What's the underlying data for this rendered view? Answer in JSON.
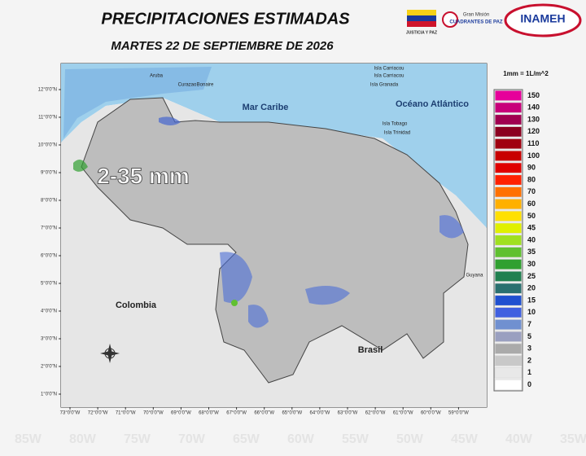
{
  "header": {
    "title": "PRECIPITACIONES  ESTIMADAS",
    "date": "MARTES 22 DE SEPTIEMBRE DE 2026"
  },
  "logos": {
    "ministry": "JUSTICIA Y PAZ",
    "mission_top": "Gran Misión",
    "mission_bottom": "CUADRANTES DE PAZ",
    "institute": "INAMEH"
  },
  "map": {
    "range_label": "2-35 mm",
    "places": [
      "Aruba",
      "Curazao",
      "Bonaire",
      "Mar Caribe",
      "Océano Atlántico",
      "Isla Carriacou",
      "Isla Carriacou",
      "Isla Granada",
      "Isla Tobago",
      "Isla Trinidad",
      "Colombia",
      "Brasil",
      "Guyana"
    ],
    "latitude_labels": [
      "12°0'0\"N",
      "11°0'0\"N",
      "10°0'0\"N",
      "9°0'0\"N",
      "8°0'0\"N",
      "7°0'0\"N",
      "6°0'0\"N",
      "5°0'0\"N",
      "4°0'0\"N",
      "3°0'0\"N",
      "2°0'0\"N",
      "1°0'0\"N"
    ],
    "longitude_labels": [
      "73°0'0\"W",
      "72°0'0\"W",
      "71°0'0\"W",
      "70°0'0\"W",
      "69°0'0\"W",
      "68°0'0\"W",
      "67°0'0\"W",
      "66°0'0\"W",
      "65°0'0\"W",
      "64°0'0\"W",
      "63°0'0\"W",
      "62°0'0\"W",
      "61°0'0\"W",
      "60°0'0\"W",
      "59°0'0\"W"
    ],
    "watermark": [
      "85W",
      "80W",
      "75W",
      "70W",
      "65W",
      "60W",
      "55W",
      "50W",
      "45W",
      "40W",
      "35W"
    ]
  },
  "legend": {
    "unit": "1mm = 1L/m^2",
    "levels": [
      {
        "label": 150,
        "color": "#e6009a"
      },
      {
        "label": 140,
        "color": "#c8007a"
      },
      {
        "label": 130,
        "color": "#a00050"
      },
      {
        "label": 120,
        "color": "#8b0020"
      },
      {
        "label": 110,
        "color": "#a00010"
      },
      {
        "label": 100,
        "color": "#c80000"
      },
      {
        "label": 90,
        "color": "#e00000"
      },
      {
        "label": 80,
        "color": "#ff2000"
      },
      {
        "label": 70,
        "color": "#ff7000"
      },
      {
        "label": 60,
        "color": "#ffb000"
      },
      {
        "label": 50,
        "color": "#ffe000"
      },
      {
        "label": 45,
        "color": "#e0f000"
      },
      {
        "label": 40,
        "color": "#a0e020"
      },
      {
        "label": 35,
        "color": "#60c030"
      },
      {
        "label": 30,
        "color": "#30a030"
      },
      {
        "label": 25,
        "color": "#208050"
      },
      {
        "label": 20,
        "color": "#2a7070"
      },
      {
        "label": 15,
        "color": "#2050d0"
      },
      {
        "label": 10,
        "color": "#4060e0"
      },
      {
        "label": 7,
        "color": "#7090d0"
      },
      {
        "label": 5,
        "color": "#9aa0c0"
      },
      {
        "label": 3,
        "color": "#aaaaaa"
      },
      {
        "label": 2,
        "color": "#c8c8c8"
      },
      {
        "label": 1,
        "color": "#e8e8e8"
      },
      {
        "label": 0,
        "color": "#ffffff"
      }
    ]
  }
}
